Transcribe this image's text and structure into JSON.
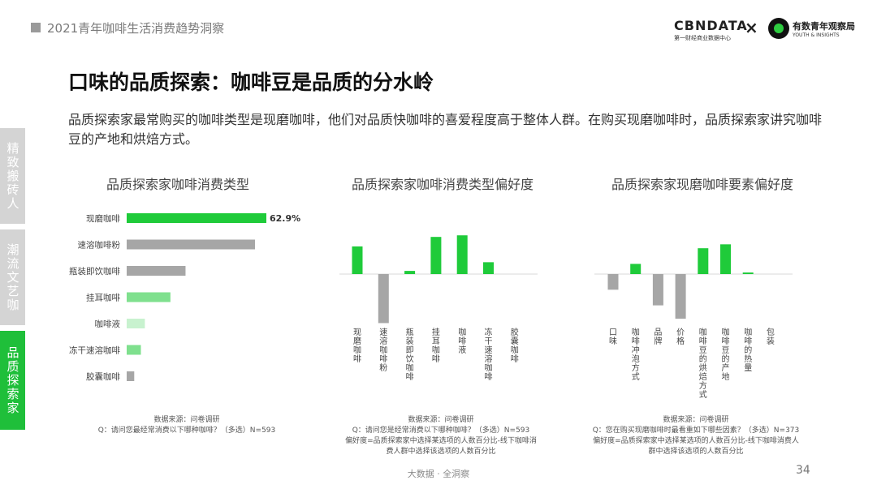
{
  "header": {
    "report_title": "2021青年咖啡生活消费趋势洞察",
    "logo_cbn": "CBNDATA",
    "logo_cbn_sub": "第一财经商业数据中心",
    "logo_separator": "×",
    "logo_yt": "有数青年观察局",
    "logo_yt_sub": "YOUTH & INSIGHTS"
  },
  "side_tabs": [
    {
      "label": "精致搬砖人",
      "active": false
    },
    {
      "label": "潮流文艺咖",
      "active": false
    },
    {
      "label": "品质探索家",
      "active": true
    }
  ],
  "main": {
    "title": "口味的品质探索：咖啡豆是品质的分水岭",
    "summary": "品质探索家最常购买的咖啡类型是现磨咖啡，他们对品质快咖啡的喜爱程度高于整体人群。在购买现磨咖啡时，品质探索家讲究咖啡豆的产地和烘焙方式。"
  },
  "colors": {
    "green": "#1fcb3a",
    "gray": "#a6a6a6",
    "light_green_1": "#7fe08e",
    "light_green_2": "#c8f2cf"
  },
  "chart_data": [
    {
      "type": "bar",
      "orientation": "horizontal",
      "title": "品质探索家咖啡消费类型",
      "categories": [
        "现磨咖啡",
        "速溶咖啡粉",
        "瓶装即饮咖啡",
        "挂耳咖啡",
        "咖啡液",
        "冻干速溶咖啡",
        "胶囊咖啡"
      ],
      "values": [
        62.9,
        57.8,
        26.5,
        19.7,
        8.2,
        6.4,
        3.4
      ],
      "value_label": "62.9%",
      "bar_colors": [
        "#1fcb3a",
        "#a6a6a6",
        "#a6a6a6",
        "#7fe08e",
        "#c8f2cf",
        "#7fe08e",
        "#a6a6a6"
      ],
      "note": [
        "数据来源：问卷调研",
        "Q：请问您最经常消费以下哪种咖啡？（多选）N=593"
      ]
    },
    {
      "type": "bar",
      "orientation": "vertical",
      "title": "品质探索家咖啡消费类型偏好度",
      "categories": [
        "现磨咖啡",
        "速溶咖啡粉",
        "瓶装即饮咖啡",
        "挂耳咖啡",
        "咖啡液",
        "冻干速溶咖啡",
        "胶囊咖啡"
      ],
      "values": [
        35,
        -62,
        4,
        47,
        49,
        15,
        0
      ],
      "note": [
        "数据来源：问卷调研",
        "Q：请问您是经常消费以下哪种咖啡？（多选）N=593",
        "偏好度=品质探索家中选择某选项的人数百分比-线下咖啡消",
        "费人群中选择该选项的人数百分比"
      ]
    },
    {
      "type": "bar",
      "orientation": "vertical",
      "title": "品质探索家现磨咖啡要素偏好度",
      "categories": [
        "口味",
        "咖啡冲泡方式",
        "品牌",
        "价格",
        "咖啡豆的烘焙方式",
        "咖啡豆的产地",
        "咖啡的热量",
        "包装"
      ],
      "values": [
        -20,
        13,
        -40,
        -57,
        33,
        38,
        2,
        0
      ],
      "note": [
        "数据来源：问卷调研",
        "Q：您在购买现磨咖啡时最看重如下哪些因素？（多选）N=373",
        "偏好度=品质探索家中选择某选项的人数百分比-线下咖啡消费人",
        "群中选择该选项的人数百分比"
      ]
    }
  ],
  "footer": {
    "center_text": "大数据 · 全洞察",
    "page_number": "34"
  }
}
